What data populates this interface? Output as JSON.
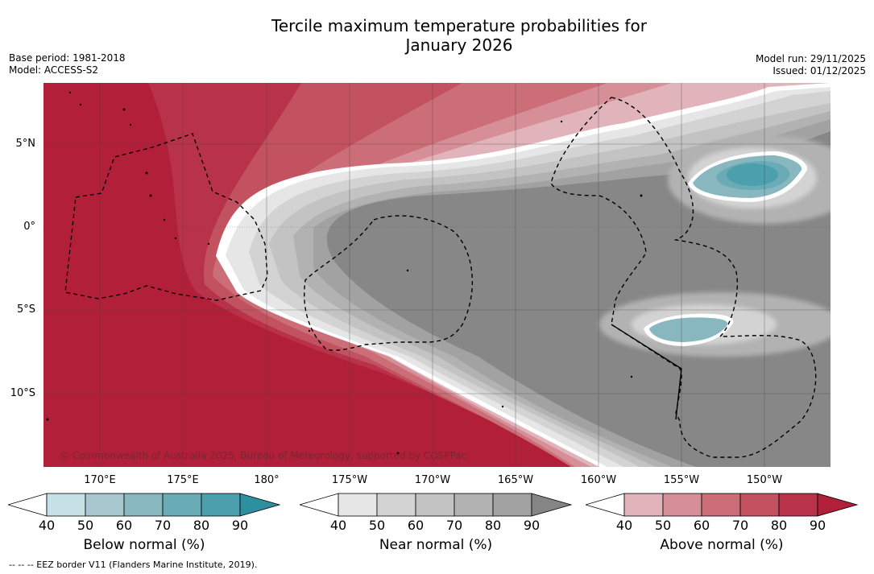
{
  "title_line1": "Tercile maximum temperature probabilities for",
  "title_line2": "January 2026",
  "meta": {
    "base_period": "Base period: 1981-2018",
    "model": "Model: ACCESS-S2",
    "model_run": "Model run: 29/11/2025",
    "issued": "Issued: 01/12/2025"
  },
  "copyright": "© Commonwealth of Australia 2025, Bureau of Meteorology, supported by COSPPac",
  "latitude_labels": [
    "5°N",
    "0°",
    "5°S",
    "10°S"
  ],
  "longitude_labels": [
    "170°E",
    "175°E",
    "180°",
    "175°W",
    "170°W",
    "165°W",
    "160°W",
    "155°W",
    "150°W"
  ],
  "colorbars": [
    {
      "name": "below",
      "label": "Below normal (%)",
      "ticks": [
        "40",
        "50",
        "60",
        "70",
        "80",
        "90"
      ],
      "colors": [
        "#c6e1e6",
        "#a6c8ce",
        "#88b7c0",
        "#6aacb6",
        "#4c9fac",
        "#2e8f9f"
      ]
    },
    {
      "name": "near",
      "label": "Near normal (%)",
      "ticks": [
        "40",
        "50",
        "60",
        "70",
        "80",
        "90"
      ],
      "colors": [
        "#e6e6e6",
        "#d3d3d3",
        "#c3c3c3",
        "#b2b2b2",
        "#a2a2a2",
        "#858585"
      ]
    },
    {
      "name": "above",
      "label": "Above normal (%)",
      "ticks": [
        "40",
        "50",
        "60",
        "70",
        "80",
        "90"
      ],
      "colors": [
        "#e0b4ba",
        "#d68e97",
        "#cb6e78",
        "#c2525f",
        "#b8324a",
        "#b21f38"
      ]
    }
  ],
  "eez_note": "-- -- -- EEZ border V11 (Flanders Marine Institute, 2019)."
}
